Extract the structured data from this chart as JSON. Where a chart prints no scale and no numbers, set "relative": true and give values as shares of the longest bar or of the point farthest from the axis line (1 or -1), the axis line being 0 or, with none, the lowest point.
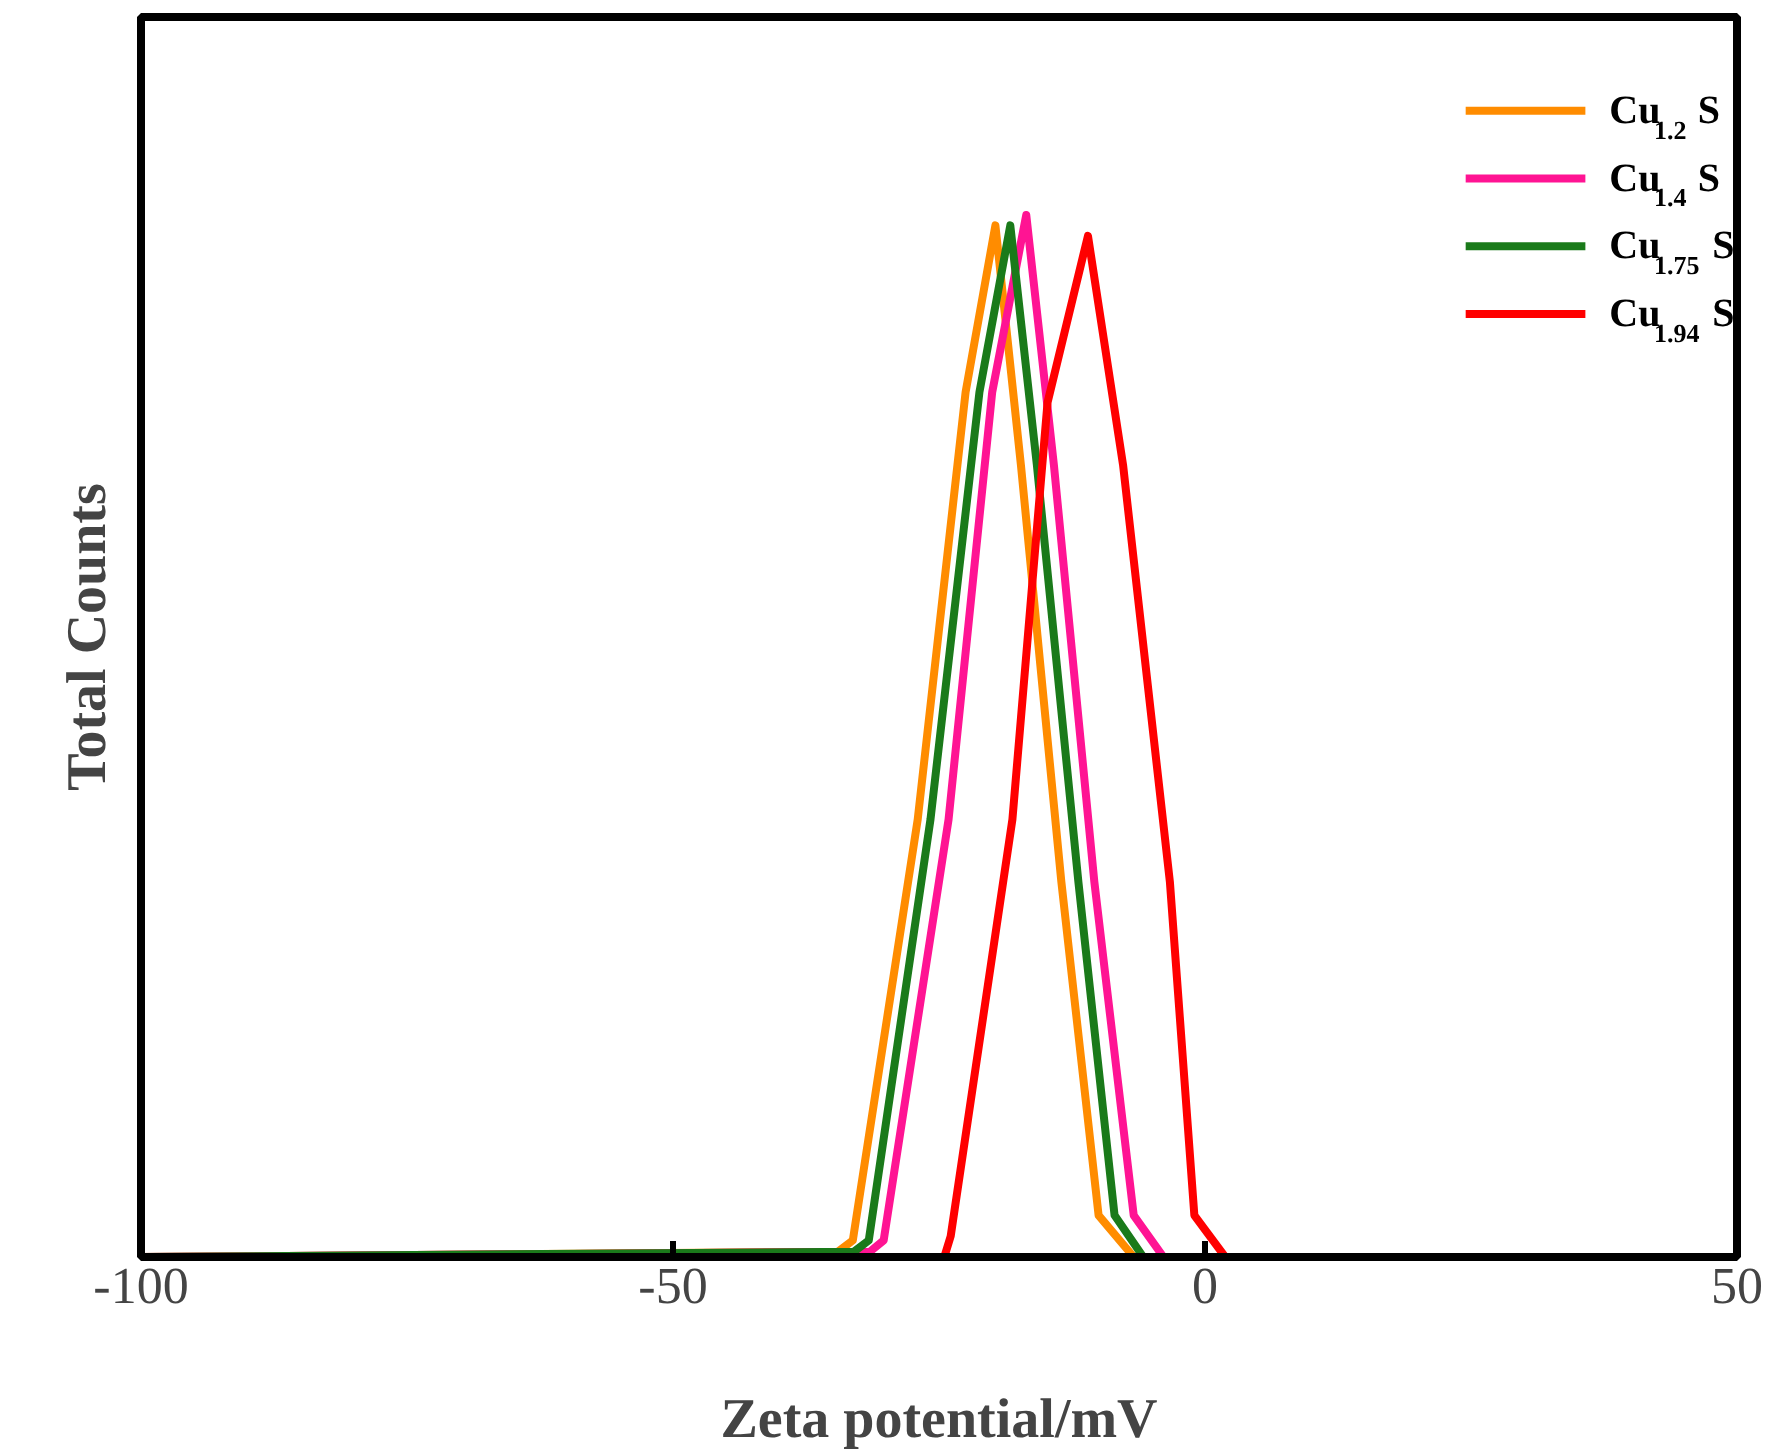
{
  "chart_data": {
    "type": "line",
    "relative": true,
    "xlabel": "Zeta potential/mV",
    "ylabel": "Total Counts",
    "xlim": [
      -100,
      50
    ],
    "xticks": [
      -100,
      -50,
      0,
      50
    ],
    "grid": false,
    "legend": "top right",
    "marker": "none",
    "line_style": "solid",
    "series": [
      {
        "name": "Cu$_{1.2}$S",
        "color": "#ff8c00",
        "x": [
          -100,
          -34.5,
          -33.1,
          -27,
          -22.5,
          -19.7,
          -17.3,
          -13.5,
          -10.0,
          -6.7,
          50
        ],
        "values": [
          0,
          0.005,
          0.016,
          0.42,
          0.83,
          0.99,
          0.76,
          0.36,
          0.04,
          0,
          0
        ]
      },
      {
        "name": "Cu$_{1.4}$S",
        "color": "#ff1493",
        "x": [
          -100,
          -31.5,
          -30.2,
          -24.1,
          -20.0,
          -16.8,
          -14.2,
          -10.4,
          -6.7,
          -3.9,
          50
        ],
        "values": [
          0,
          0.005,
          0.016,
          0.42,
          0.83,
          1.0,
          0.76,
          0.36,
          0.04,
          0,
          0
        ]
      },
      {
        "name": "Cu$_{1.75}$S",
        "color": "#1a7a1a",
        "x": [
          -100,
          -33,
          -31.6,
          -25.8,
          -21.2,
          -18.3,
          -15.8,
          -11.9,
          -8.5,
          -5.8,
          50
        ],
        "values": [
          0,
          0.005,
          0.016,
          0.42,
          0.83,
          0.99,
          0.76,
          0.36,
          0.04,
          0,
          0
        ]
      },
      {
        "name": "Cu$_{1.94}$S",
        "color": "#ff0000",
        "x": [
          -100,
          -24.5,
          -23.9,
          -18.1,
          -14.8,
          -11.0,
          -7.7,
          -3.3,
          -1.0,
          1.9,
          50
        ],
        "values": [
          0,
          0,
          0.02,
          0.42,
          0.82,
          0.98,
          0.76,
          0.36,
          0.04,
          0,
          0
        ]
      }
    ]
  }
}
